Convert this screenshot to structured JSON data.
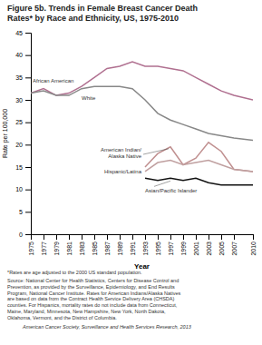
{
  "chart_data": {
    "type": "line",
    "title": "Figure 5b. Trends in Female Breast Cancer Death\nRates* by Race and Ethnicity, US, 1975-2010",
    "x_label": "Year",
    "y_label": "Rate per 100,000",
    "x": [
      1975,
      1977,
      1979,
      1981,
      1983,
      1985,
      1987,
      1989,
      1991,
      1993,
      1995,
      1997,
      1999,
      2001,
      2003,
      2005,
      2007,
      2010
    ],
    "series": [
      {
        "name": "African American",
        "color": "#b07090",
        "values": [
          31.5,
          32.5,
          31.0,
          31.5,
          33.0,
          35.0,
          37.0,
          37.5,
          38.5,
          37.5,
          37.5,
          37.0,
          36.5,
          35.0,
          33.5,
          32.0,
          31.0,
          30.0
        ]
      },
      {
        "name": "White",
        "color": "#888888",
        "values": [
          31.5,
          32.0,
          31.0,
          31.0,
          32.5,
          33.0,
          33.0,
          33.0,
          32.5,
          30.0,
          27.0,
          25.5,
          24.5,
          23.5,
          22.5,
          22.0,
          21.5,
          21.0
        ]
      },
      {
        "name": "American Indian/\nAlaska Native",
        "color": "#c09090",
        "values": [
          null,
          null,
          null,
          null,
          null,
          null,
          null,
          null,
          null,
          15.0,
          18.0,
          19.5,
          15.5,
          17.0,
          20.5,
          18.5,
          14.5,
          14.0
        ]
      },
      {
        "name": "Hispanic/Latina",
        "color": "#c0a0a0",
        "values": [
          null,
          null,
          null,
          null,
          null,
          null,
          null,
          null,
          null,
          14.0,
          16.0,
          16.5,
          15.5,
          16.0,
          16.5,
          15.5,
          14.5,
          14.0
        ]
      },
      {
        "name": "Asian/Pacific Islander",
        "color": "#111111",
        "values": [
          null,
          null,
          null,
          null,
          null,
          null,
          null,
          null,
          null,
          12.5,
          12.0,
          12.5,
          12.0,
          12.5,
          11.5,
          11.0,
          11.0,
          11.0
        ]
      }
    ],
    "xlim": [
      1975,
      2010
    ],
    "xticks": [
      1975,
      1977,
      1979,
      1981,
      1983,
      1985,
      1987,
      1989,
      1991,
      1993,
      1995,
      1997,
      1999,
      2001,
      2003,
      2005,
      2007,
      2010
    ],
    "ylim": [
      0,
      45
    ],
    "yticks": [
      0,
      5,
      10,
      15,
      20,
      25,
      30,
      35,
      40,
      45
    ],
    "grid": false,
    "footnotes": [
      "*Rates are age adjusted to the 2000 US standard population.",
      "Source: National Center for Health Statistics, Centers for Disease Control and\nPrevention, as provided by the Surveillance, Epidemiology, and End Results\nProgram, National Cancer Institute. Rates for American Indians/Alaska Natives\nare based on data from the Contract Health Service Delivery Area (CHSDA)\ncounties. For Hispanics, mortality rates do not include data from Connecticut,\nMaine, Maryland, Minnesota, New Hampshire, New York, North Dakota,\nOklahoma, Vermont, and the District of Columbia.",
      "American Cancer Society, Surveillance and Health Services Research, 2013"
    ]
  }
}
